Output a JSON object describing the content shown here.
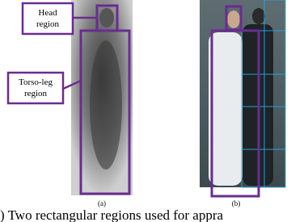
{
  "figure": {
    "labels": {
      "head": "Head\nregion",
      "torso": "Torso-leg\nregion"
    },
    "subcaptions": [
      "(a)",
      "(b)"
    ],
    "caption": ") Two rectangular regions used for appra"
  }
}
